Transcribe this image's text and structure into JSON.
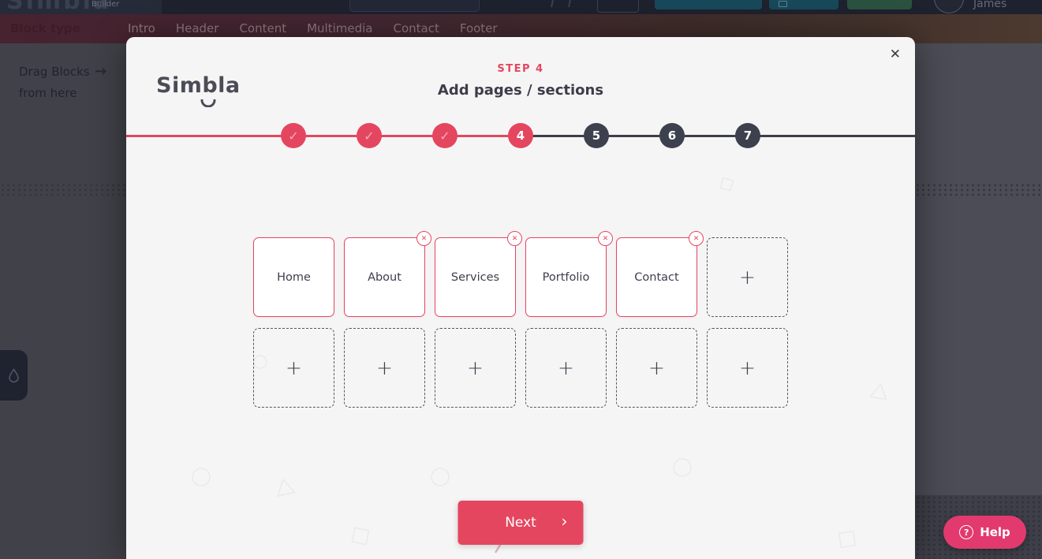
{
  "colors": {
    "accent": "#e5465f",
    "help_pink": "#e23a6e",
    "step_inactive": "#3d404d",
    "modal_bg": "#f6f5f6",
    "teal_button": "#17495a",
    "green_button": "#2b5140",
    "topbar_bg": "#1e212e",
    "overlay_left": "#414249",
    "overlay_right": "#4b4c55"
  },
  "builder": {
    "topbar": {
      "logo_title": "Simbla",
      "logo_subtitle": "Builder",
      "user_name": "James"
    },
    "tabbar": {
      "block_type_label": "Block type",
      "tabs": [
        "Intro",
        "Header",
        "Content",
        "Multimedia",
        "Contact",
        "Footer"
      ]
    },
    "sidebar": {
      "drag_hint_line1": "Drag Blocks",
      "drag_hint_line2": "from here",
      "arrow_icon": "→"
    },
    "help_button": {
      "icon": "?",
      "label": "Help"
    }
  },
  "modal": {
    "logo": "Simbla",
    "close_icon": "✕",
    "step_label": "STEP 4",
    "title": "Add pages / sections",
    "stepper": {
      "check_icon": "✓",
      "steps": [
        {
          "number": 1,
          "state": "completed"
        },
        {
          "number": 2,
          "state": "completed"
        },
        {
          "number": 3,
          "state": "completed"
        },
        {
          "number": 4,
          "state": "active"
        },
        {
          "number": 5,
          "state": "upcoming"
        },
        {
          "number": 6,
          "state": "upcoming"
        },
        {
          "number": 7,
          "state": "upcoming"
        }
      ]
    },
    "pages": [
      {
        "label": "Home",
        "removable": false
      },
      {
        "label": "About",
        "removable": true
      },
      {
        "label": "Services",
        "removable": true
      },
      {
        "label": "Portfolio",
        "removable": true
      },
      {
        "label": "Contact",
        "removable": true
      }
    ],
    "remove_icon": "✕",
    "add_slot_icon": "+",
    "total_slots": 12,
    "next_button": {
      "label": "Next",
      "chevron_icon": "›"
    }
  }
}
